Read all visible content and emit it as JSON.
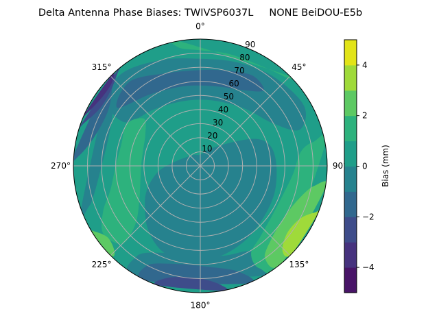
{
  "chart_data": {
    "type": "heatmap",
    "subtype": "polar-filled-contour",
    "title": "Delta Antenna Phase Biases: TWIVSP6037L     NONE BeiDOU-E5b",
    "angular_ticks": [
      {
        "value": 0,
        "label": "0°"
      },
      {
        "value": 45,
        "label": "45°"
      },
      {
        "value": 90,
        "label": "90°"
      },
      {
        "value": 135,
        "label": "135°"
      },
      {
        "value": 180,
        "label": "180°"
      },
      {
        "value": 225,
        "label": "225°"
      },
      {
        "value": 270,
        "label": "270°"
      },
      {
        "value": 315,
        "label": "315°"
      }
    ],
    "angular_direction": "clockwise",
    "angular_zero": "top",
    "radial_ticks": [
      {
        "value": 10,
        "label": "10"
      },
      {
        "value": 20,
        "label": "20"
      },
      {
        "value": 30,
        "label": "30"
      },
      {
        "value": 40,
        "label": "40"
      },
      {
        "value": 50,
        "label": "50"
      },
      {
        "value": 60,
        "label": "60"
      },
      {
        "value": 70,
        "label": "70"
      },
      {
        "value": 80,
        "label": "80"
      },
      {
        "value": 90,
        "label": "90"
      }
    ],
    "rlim": [
      0,
      90
    ],
    "grid": true,
    "colormap": "viridis",
    "levels": [
      -5,
      -4,
      -3,
      -2,
      -1,
      0,
      1,
      2,
      3,
      4,
      5
    ],
    "level_colors": [
      "#481467",
      "#46327e",
      "#3e4c8a",
      "#31688e",
      "#26828e",
      "#1f9e89",
      "#2db27d",
      "#5dc963",
      "#9fda3a",
      "#e2e418"
    ],
    "background_band": [
      0,
      1
    ],
    "regions": [
      {
        "band": [
          -1,
          0
        ],
        "points": [
          [
            0,
            8
          ],
          [
            30,
            14
          ],
          [
            55,
            30
          ],
          [
            65,
            45
          ],
          [
            75,
            52
          ],
          [
            90,
            54
          ],
          [
            110,
            56
          ],
          [
            130,
            58
          ],
          [
            150,
            62
          ],
          [
            170,
            66
          ],
          [
            190,
            68
          ],
          [
            205,
            66
          ],
          [
            220,
            58
          ],
          [
            235,
            48
          ],
          [
            245,
            42
          ],
          [
            255,
            35
          ],
          [
            265,
            28
          ],
          [
            280,
            18
          ],
          [
            300,
            12
          ],
          [
            330,
            9
          ]
        ]
      },
      {
        "band": [
          -1,
          0
        ],
        "points": [
          [
            300,
            62
          ],
          [
            320,
            52
          ],
          [
            340,
            48
          ],
          [
            0,
            47
          ],
          [
            20,
            48
          ],
          [
            40,
            52
          ],
          [
            60,
            60
          ],
          [
            70,
            75
          ],
          [
            60,
            85
          ],
          [
            40,
            82
          ],
          [
            20,
            78
          ],
          [
            0,
            76
          ],
          [
            340,
            80
          ],
          [
            320,
            86
          ],
          [
            305,
            82
          ]
        ]
      },
      {
        "band": [
          -2,
          -1
        ],
        "points": [
          [
            305,
            72
          ],
          [
            325,
            62
          ],
          [
            345,
            58
          ],
          [
            0,
            57
          ],
          [
            15,
            58
          ],
          [
            30,
            62
          ],
          [
            40,
            70
          ],
          [
            30,
            74
          ],
          [
            15,
            70
          ],
          [
            0,
            68
          ],
          [
            340,
            70
          ],
          [
            320,
            78
          ]
        ]
      },
      {
        "band": [
          -1,
          0
        ],
        "points": [
          [
            255,
            78
          ],
          [
            270,
            70
          ],
          [
            285,
            68
          ],
          [
            300,
            72
          ],
          [
            310,
            82
          ],
          [
            315,
            90
          ],
          [
            250,
            90
          ],
          [
            250,
            84
          ]
        ]
      },
      {
        "band": [
          -2,
          -1
        ],
        "points": [
          [
            275,
            86
          ],
          [
            285,
            78
          ],
          [
            300,
            76
          ],
          [
            310,
            82
          ],
          [
            315,
            90
          ],
          [
            275,
            90
          ]
        ]
      },
      {
        "band": [
          -3,
          -2
        ],
        "points": [
          [
            290,
            88
          ],
          [
            300,
            82
          ],
          [
            310,
            83
          ],
          [
            318,
            88
          ],
          [
            320,
            90
          ],
          [
            288,
            90
          ]
        ]
      },
      {
        "band": [
          -4,
          -3
        ],
        "points": [
          [
            296,
            88
          ],
          [
            305,
            85
          ],
          [
            313,
            86
          ],
          [
            316,
            90
          ],
          [
            294,
            90
          ]
        ]
      },
      {
        "band": [
          -1,
          0
        ],
        "points": [
          [
            150,
            70
          ],
          [
            165,
            66
          ],
          [
            185,
            64
          ],
          [
            205,
            68
          ],
          [
            215,
            78
          ],
          [
            210,
            90
          ],
          [
            150,
            90
          ],
          [
            146,
            82
          ]
        ]
      },
      {
        "band": [
          -2,
          -1
        ],
        "points": [
          [
            160,
            80
          ],
          [
            175,
            72
          ],
          [
            195,
            72
          ],
          [
            208,
            80
          ],
          [
            205,
            90
          ],
          [
            158,
            90
          ]
        ]
      },
      {
        "band": [
          -3,
          -2
        ],
        "points": [
          [
            170,
            86
          ],
          [
            180,
            80
          ],
          [
            195,
            82
          ],
          [
            200,
            90
          ],
          [
            170,
            90
          ]
        ]
      },
      {
        "band": [
          1,
          2
        ],
        "points": [
          [
            228,
            62
          ],
          [
            240,
            50
          ],
          [
            255,
            44
          ],
          [
            270,
            42
          ],
          [
            285,
            42
          ],
          [
            300,
            45
          ],
          [
            310,
            52
          ],
          [
            300,
            60
          ],
          [
            285,
            58
          ],
          [
            270,
            60
          ],
          [
            255,
            66
          ],
          [
            245,
            76
          ],
          [
            235,
            84
          ],
          [
            225,
            78
          ]
        ]
      },
      {
        "band": [
          1,
          2
        ],
        "points": [
          [
            350,
            85
          ],
          [
            0,
            82
          ],
          [
            15,
            82
          ],
          [
            35,
            84
          ],
          [
            45,
            88
          ],
          [
            45,
            90
          ],
          [
            350,
            90
          ]
        ]
      },
      {
        "band": [
          1,
          2
        ],
        "points": [
          [
            82,
            72
          ],
          [
            95,
            66
          ],
          [
            110,
            62
          ],
          [
            125,
            62
          ],
          [
            140,
            66
          ],
          [
            150,
            72
          ],
          [
            150,
            84
          ],
          [
            140,
            90
          ],
          [
            80,
            90
          ],
          [
            78,
            82
          ]
        ]
      },
      {
        "band": [
          2,
          3
        ],
        "points": [
          [
            100,
            82
          ],
          [
            108,
            74
          ],
          [
            120,
            70
          ],
          [
            135,
            72
          ],
          [
            145,
            80
          ],
          [
            140,
            90
          ],
          [
            100,
            90
          ]
        ]
      },
      {
        "band": [
          3,
          4
        ],
        "points": [
          [
            112,
            88
          ],
          [
            118,
            80
          ],
          [
            128,
            78
          ],
          [
            136,
            84
          ],
          [
            134,
            90
          ],
          [
            112,
            90
          ]
        ]
      },
      {
        "band": [
          2,
          3
        ],
        "points": [
          [
            225,
            86
          ],
          [
            232,
            83
          ],
          [
            238,
            88
          ],
          [
            238,
            90
          ],
          [
            225,
            90
          ]
        ]
      }
    ],
    "colorbar": {
      "label": "Bias (mm)",
      "range": [
        -5,
        5
      ],
      "ticks": [
        {
          "value": 4,
          "label": "4"
        },
        {
          "value": 2,
          "label": "2"
        },
        {
          "value": 0,
          "label": "0"
        },
        {
          "value": -2,
          "label": "−2"
        },
        {
          "value": -4,
          "label": "−4"
        }
      ]
    }
  }
}
